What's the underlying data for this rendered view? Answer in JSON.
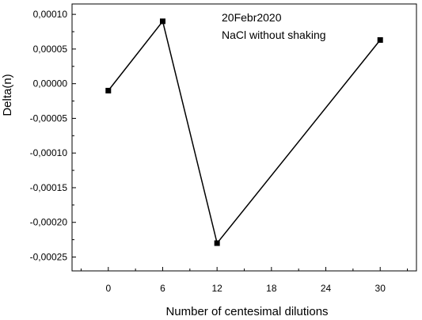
{
  "chart_data": {
    "type": "line",
    "title": "",
    "xlabel": "Number of centesimal dilutions",
    "ylabel": "Delta(n)",
    "annotations": [
      "20Febr2020",
      "NaCl without shaking"
    ],
    "x": [
      0,
      6,
      12,
      30
    ],
    "series": [
      {
        "values": [
          -1e-05,
          9e-05,
          -0.00023,
          6.3e-05
        ]
      }
    ],
    "xlim": [
      -4,
      34
    ],
    "ylim": [
      -0.00027,
      0.000115
    ],
    "xticks": [
      0,
      6,
      12,
      18,
      24,
      30
    ],
    "xtick_labels": [
      "0",
      "6",
      "12",
      "18",
      "24",
      "30"
    ],
    "yticks": [
      0.0001,
      5e-05,
      0,
      -5e-05,
      -0.0001,
      -0.00015,
      -0.0002,
      -0.00025
    ],
    "ytick_labels": [
      "0,00010",
      "0,00005",
      "0,00000",
      "-0,00005",
      "-0,00010",
      "-0,00015",
      "-0,00020",
      "-0,00025"
    ],
    "grid": false,
    "legend": "none",
    "line_color": "#000000",
    "marker": "square"
  }
}
